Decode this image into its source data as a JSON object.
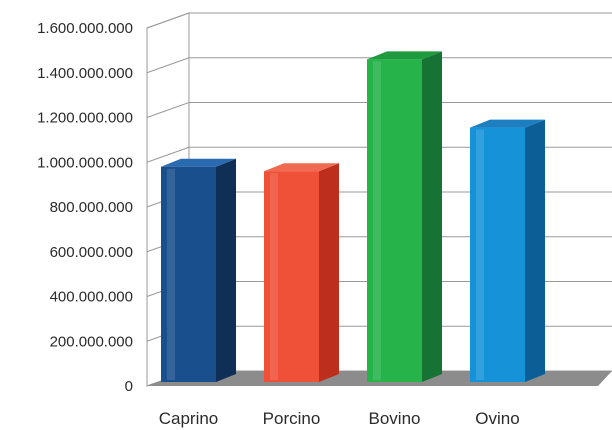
{
  "chart_data": {
    "type": "bar",
    "categories": [
      "Caprino",
      "Porcino",
      "Bovino",
      "Ovino"
    ],
    "values": [
      980000000,
      960000000,
      1460000000,
      1155000000
    ],
    "colors": {
      "Caprino": {
        "front": "#1a4f8e",
        "side": "#0f2f56",
        "top": "#2a6ab0"
      },
      "Porcino": {
        "front": "#ef5038",
        "side": "#bd2e1d",
        "top": "#f06a52"
      },
      "Bovino": {
        "front": "#25b34a",
        "side": "#167333",
        "top": "#1f9a3e"
      },
      "Ovino": {
        "front": "#1693d8",
        "side": "#0c5e96",
        "top": "#1d7fc0"
      }
    },
    "ylim": [
      0,
      1600000000
    ],
    "y_ticks": [
      0,
      200000000,
      400000000,
      600000000,
      800000000,
      1000000000,
      1200000000,
      1400000000,
      1600000000
    ],
    "y_tick_labels": [
      "0",
      "200.000.000",
      "400.000.000",
      "600.000.000",
      "800.000.000",
      "1.000.000.000",
      "1.200.000.000",
      "1.400.000.000",
      "1.600.000.000"
    ],
    "title": "",
    "xlabel": "",
    "ylabel": "",
    "grid": true,
    "style": "3d-column"
  }
}
